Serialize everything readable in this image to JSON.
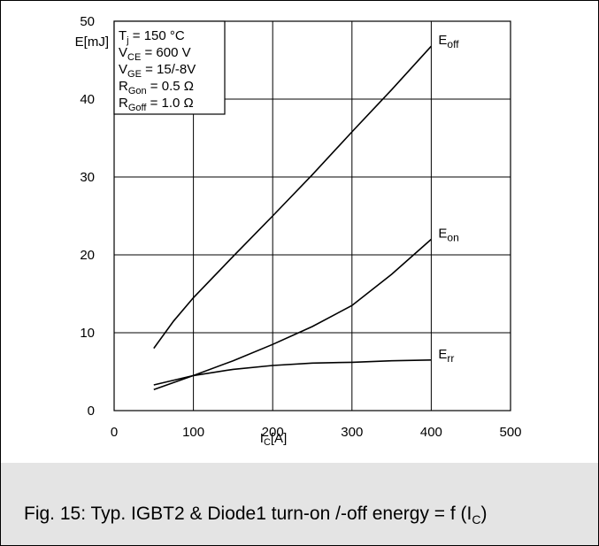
{
  "chart_data": {
    "type": "line",
    "title": "",
    "xlabel": {
      "main": "I",
      "sub": "C",
      "tail": "[A]"
    },
    "ylabel": "E[mJ]",
    "xlim": [
      0,
      500
    ],
    "ylim": [
      0,
      50
    ],
    "xticks": [
      0,
      100,
      200,
      300,
      400,
      500
    ],
    "yticks": [
      0,
      10,
      20,
      30,
      40,
      50
    ],
    "grid": true,
    "legend": "top-left",
    "conditions": [
      {
        "main": "T",
        "sub": "j",
        "tail": "  = 150 °C"
      },
      {
        "main": "V",
        "sub": "CE",
        "tail": " = 600 V"
      },
      {
        "main": "V",
        "sub": "GE",
        "tail": " = 15/-8V"
      },
      {
        "main": "R",
        "sub": "Gon",
        "tail": " = 0.5 Ω"
      },
      {
        "main": "R",
        "sub": "Goff",
        "tail": " = 1.0 Ω"
      }
    ],
    "series": [
      {
        "name": "E",
        "name_sub": "off",
        "color": "#000000",
        "points": [
          [
            50,
            8.0
          ],
          [
            75,
            11.5
          ],
          [
            100,
            14.5
          ],
          [
            150,
            19.8
          ],
          [
            200,
            25.0
          ],
          [
            250,
            30.3
          ],
          [
            300,
            35.8
          ],
          [
            350,
            41.2
          ],
          [
            400,
            46.8
          ]
        ]
      },
      {
        "name": "E",
        "name_sub": "on",
        "color": "#000000",
        "points": [
          [
            50,
            2.7
          ],
          [
            100,
            4.5
          ],
          [
            150,
            6.4
          ],
          [
            200,
            8.5
          ],
          [
            250,
            10.8
          ],
          [
            300,
            13.5
          ],
          [
            350,
            17.5
          ],
          [
            400,
            22.0
          ]
        ]
      },
      {
        "name": "E",
        "name_sub": "rr",
        "color": "#000000",
        "points": [
          [
            50,
            3.3
          ],
          [
            100,
            4.5
          ],
          [
            150,
            5.3
          ],
          [
            200,
            5.8
          ],
          [
            250,
            6.1
          ],
          [
            300,
            6.2
          ],
          [
            350,
            6.4
          ],
          [
            400,
            6.5
          ]
        ]
      }
    ]
  },
  "caption": {
    "prefix": "Fig. 15: Typ. IGBT2 & Diode1 turn-on /-off energy = f (I",
    "sub": "C",
    "suffix": ")"
  }
}
